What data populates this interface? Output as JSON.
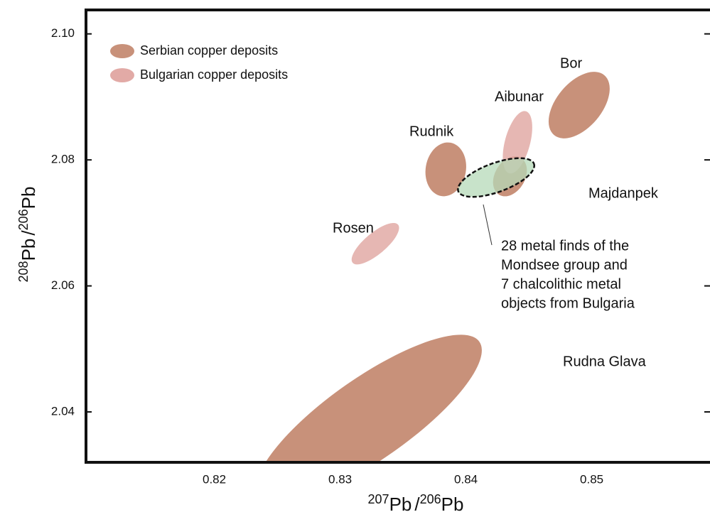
{
  "chart_data": {
    "type": "region",
    "x_label": {
      "parts": [
        "207",
        "Pb",
        "/",
        "206",
        "Pb"
      ]
    },
    "y_label": {
      "parts": [
        "208",
        "Pb",
        "/",
        "206",
        "Pb"
      ]
    },
    "xlim": [
      0.8098,
      0.8594
    ],
    "xticks": [
      0.82,
      0.83,
      0.84,
      0.85
    ],
    "ylim": [
      2.032,
      2.1038
    ],
    "yticks": [
      {
        "value": 2.1,
        "label": "2.10"
      },
      2.08,
      2.06,
      2.04
    ],
    "series": [
      {
        "name": "Serbian copper deposits",
        "color": "#c8917a",
        "regions": [
          {
            "label": "Bor",
            "cx": 0.849,
            "cy": 2.0887,
            "rx": 0.0018,
            "ry": 0.0062,
            "rotation": 40
          },
          {
            "label": "Rudnik",
            "cx": 0.8384,
            "cy": 2.0785,
            "rx": 0.0016,
            "ry": 0.0043,
            "rotation": 10
          },
          {
            "label": "Majdanpek",
            "cx": 0.8435,
            "cy": 2.0774,
            "rx": 0.0012,
            "ry": 0.0034,
            "rotation": 30
          },
          {
            "label": "Rudna Glava",
            "cx": 0.8323,
            "cy": 2.0389,
            "rx": 0.0107,
            "ry": 0.0065,
            "rotation": -35
          }
        ]
      },
      {
        "name": "Bulgarian copper deposits",
        "color": "#e2aaa6",
        "regions": [
          {
            "label": "Aibunar",
            "cx": 0.8441,
            "cy": 2.0828,
            "rx": 0.001,
            "ry": 0.0051,
            "rotation": 15
          },
          {
            "label": "Rosen",
            "cx": 0.8328,
            "cy": 2.0667,
            "rx": 0.00085,
            "ry": 0.0047,
            "rotation": 50
          }
        ]
      }
    ],
    "highlight": {
      "lines": [
        "28 metal finds of the",
        "Mondsee group and",
        "7 chalcolithic metal",
        "objects from Bulgaria"
      ],
      "color": "#b5d9b8",
      "cx": 0.8424,
      "cy": 2.0772,
      "rx": 0.0032,
      "ry": 0.0023,
      "rotation": -20
    }
  }
}
